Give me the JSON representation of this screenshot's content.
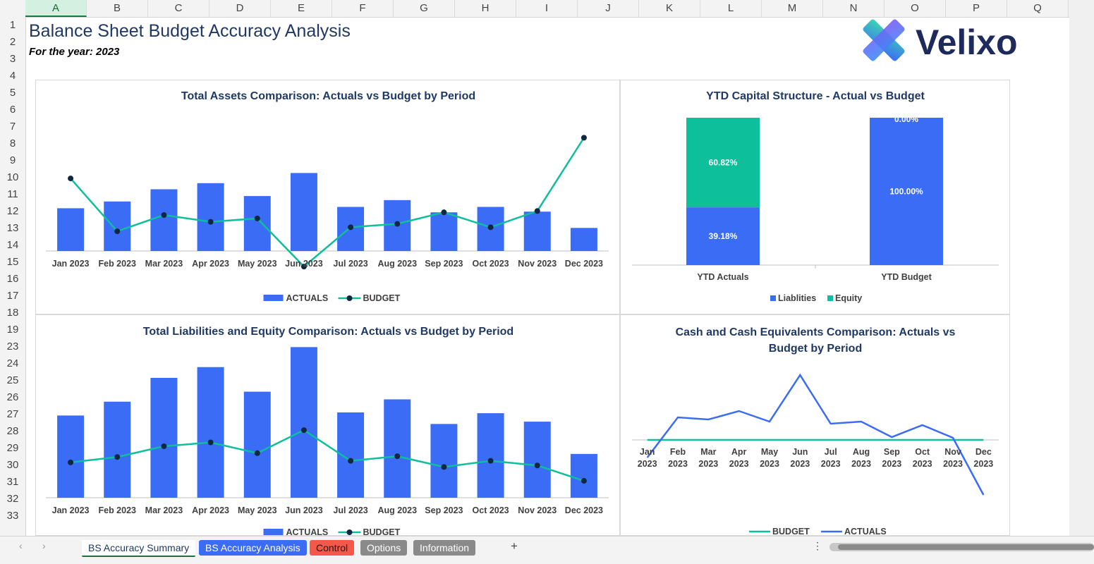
{
  "sheet": {
    "columns": [
      "A",
      "B",
      "C",
      "D",
      "E",
      "F",
      "G",
      "H",
      "I",
      "J",
      "K",
      "L",
      "M",
      "N",
      "O",
      "P",
      "Q"
    ],
    "selected_column": "A",
    "rows": [
      "1",
      "2",
      "3",
      "4",
      "5",
      "6",
      "7",
      "8",
      "9",
      "10",
      "11",
      "12",
      "13",
      "14",
      "15",
      "16",
      "17",
      "18",
      "19",
      "23",
      "24",
      "25",
      "26",
      "27",
      "28",
      "29",
      "30",
      "31",
      "32",
      "33"
    ],
    "title": "Balance Sheet Budget Accuracy Analysis",
    "subtitle": "For the year: 2023",
    "logo_text": "Velixo"
  },
  "colors": {
    "actuals_bar": "#3b6cf6",
    "budget_line": "#0dbf9b",
    "marker": "#0e2841",
    "title_blue": "#1f3864"
  },
  "tabs": {
    "items": [
      "BS Accuracy Summary",
      "BS Accuracy Analysis",
      "Control",
      "Options",
      "Information"
    ],
    "add_label": "+",
    "more_label": "⋮",
    "prev_label": "‹",
    "next_label": "›"
  },
  "chart_data": [
    {
      "id": "assets",
      "type": "bar",
      "title": "Total Assets Comparison: Actuals vs Budget by Period",
      "categories": [
        "Jan 2023",
        "Feb 2023",
        "Mar 2023",
        "Apr 2023",
        "May 2023",
        "Jun 2023",
        "Jul 2023",
        "Aug 2023",
        "Sep 2023",
        "Oct 2023",
        "Nov 2023",
        "Dec 2023"
      ],
      "series": [
        {
          "name": "ACTUALS",
          "kind": "bar",
          "values": [
            63,
            73,
            91,
            100,
            81,
            115,
            65,
            75,
            57,
            65,
            58,
            34
          ]
        },
        {
          "name": "BUDGET",
          "kind": "line",
          "values": [
            107,
            29,
            53,
            43,
            48,
            -23,
            35,
            40,
            57,
            35,
            59,
            167
          ]
        }
      ],
      "ylim": [
        -30,
        210
      ],
      "legend": [
        "ACTUALS",
        "BUDGET"
      ]
    },
    {
      "id": "capital",
      "type": "bar",
      "title": "YTD Capital Structure - Actual vs Budget",
      "categories": [
        "YTD Actuals",
        "YTD Budget"
      ],
      "series": [
        {
          "name": "Liablities",
          "values": [
            39.18,
            100.0
          ],
          "labels": [
            "39.18%",
            "100.00%"
          ]
        },
        {
          "name": "Equity",
          "values": [
            60.82,
            0.0
          ],
          "labels": [
            "60.82%",
            "0.00%"
          ]
        }
      ],
      "ylim": [
        0,
        100
      ],
      "legend": [
        "Liablities",
        "Equity"
      ]
    },
    {
      "id": "liab",
      "type": "bar",
      "title": "Total Liabilities and Equity Comparison: Actuals vs Budget by Period",
      "categories": [
        "Jan 2023",
        "Feb 2023",
        "Mar 2023",
        "Apr 2023",
        "May 2023",
        "Jun 2023",
        "Jul 2023",
        "Aug 2023",
        "Sep 2023",
        "Oct 2023",
        "Nov 2023",
        "Dec 2023"
      ],
      "series": [
        {
          "name": "ACTUALS",
          "kind": "bar",
          "values": [
            107,
            125,
            156,
            170,
            138,
            196,
            111,
            128,
            96,
            110,
            99,
            57
          ]
        },
        {
          "name": "BUDGET",
          "kind": "line",
          "values": [
            46,
            53,
            67,
            72,
            58,
            88,
            48,
            54,
            40,
            48,
            42,
            22
          ]
        }
      ],
      "ylim": [
        0,
        200
      ],
      "legend": [
        "ACTUALS",
        "BUDGET"
      ]
    },
    {
      "id": "cash",
      "type": "line",
      "title_line1": "Cash and Cash Equivalents Comparison: Actuals vs",
      "title_line2": "Budget by Period",
      "categories": [
        [
          "Jan",
          "2023"
        ],
        [
          "Feb",
          "2023"
        ],
        [
          "Mar",
          "2023"
        ],
        [
          "Apr",
          "2023"
        ],
        [
          "May",
          "2023"
        ],
        [
          "Jun",
          "2023"
        ],
        [
          "Jul",
          "2023"
        ],
        [
          "Aug",
          "2023"
        ],
        [
          "Sep",
          "2023"
        ],
        [
          "Oct",
          "2023"
        ],
        [
          "Nov",
          "2023"
        ],
        [
          "Dec",
          "2023"
        ]
      ],
      "series": [
        {
          "name": "BUDGET",
          "values": [
            0,
            0,
            0,
            0,
            0,
            0,
            0,
            0,
            0,
            0,
            0,
            0
          ]
        },
        {
          "name": "ACTUALS",
          "values": [
            -25,
            32,
            29,
            41,
            26,
            92,
            23,
            26,
            4,
            21,
            3,
            -78
          ]
        }
      ],
      "ylim": [
        -80,
        100
      ],
      "legend": [
        "BUDGET",
        "ACTUALS"
      ]
    }
  ]
}
